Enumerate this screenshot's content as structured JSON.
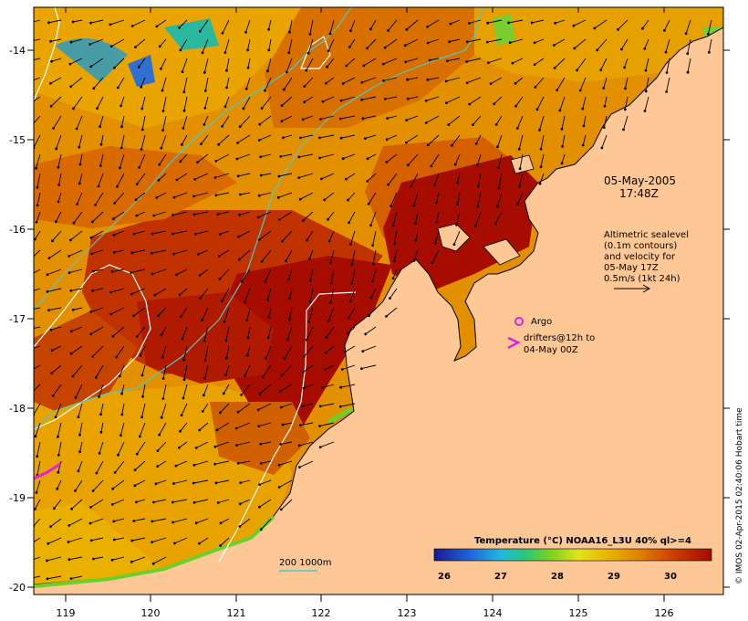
{
  "map": {
    "lon_ticks": [
      "119",
      "120",
      "121",
      "122",
      "123",
      "124",
      "125",
      "126"
    ],
    "lat_ticks": [
      "-14",
      "-15",
      "-16",
      "-17",
      "-18",
      "-19",
      "-20"
    ]
  },
  "annotations": {
    "date_line1": "05-May-2005",
    "date_line2": "17:48Z",
    "alt_line1": "Altimetric sealevel",
    "alt_line2": "(0.1m contours)",
    "alt_line3": "and velocity for",
    "alt_line4": "05-May 17Z",
    "alt_line5": "0.5m/s (1kt 24h)",
    "argo_label": "Argo",
    "drifters_line1": "drifters@12h to",
    "drifters_line2": "04-May 00Z",
    "isobath_label": "200  1000m"
  },
  "colorbar": {
    "title": "Temperature (°C) NOAA16_L3U 40% ql>=4",
    "ticks": [
      "26",
      "27",
      "28",
      "29",
      "30"
    ]
  },
  "credit": "© IMOS 02-Apr-2015 02:40:06 Hobart time",
  "colors": {
    "land": "#fdc796",
    "sst_hot": "#a60c00",
    "sst_warm": "#d44a00",
    "sst_mid": "#e27e00",
    "sst_cool": "#e8a800",
    "contour": "#ffffff",
    "isobath": "#4fc9c4",
    "argo": "#e020e0",
    "drifter": "#e020e0"
  }
}
